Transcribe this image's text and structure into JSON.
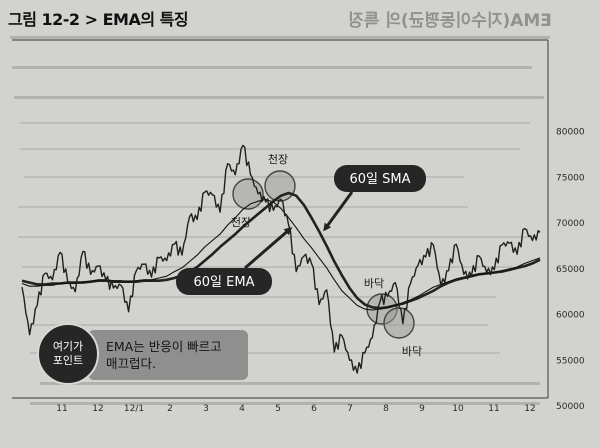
{
  "figure": {
    "title": "그림 12-2 > EMA의 특징",
    "bleed_heading": "EMA(지수이동평균)의 특징"
  },
  "callouts": {
    "sma": "60일 SMA",
    "ema": "60일 EMA"
  },
  "annotations": {
    "top_label": "천장",
    "bottom_label": "바닥"
  },
  "tip": {
    "badge_line1": "여기가",
    "badge_line2": "포인트",
    "text_line1": "EMA는 반응이 빠르고",
    "text_line2": "매끄럽다."
  },
  "chart_data": {
    "type": "line",
    "x_tick_labels": [
      "11",
      "12",
      "12/1",
      "2",
      "3",
      "4",
      "5",
      "6",
      "7",
      "8",
      "9",
      "10",
      "11",
      "12"
    ],
    "y_ticks": [
      50000,
      55000,
      60000,
      65000,
      70000,
      75000,
      80000
    ],
    "ylim": [
      50000,
      81500
    ],
    "grid": false,
    "series": [
      {
        "name": "",
        "style": "price",
        "values": [
          63000,
          57800,
          61000,
          64500,
          63800,
          66800,
          63600,
          62500,
          66900,
          64400,
          65300,
          63800,
          62900,
          63200,
          60300,
          64800,
          65500,
          64100,
          66200,
          65900,
          67700,
          66500,
          70700,
          70400,
          73400,
          73100,
          71200,
          76500,
          75300,
          78500,
          75300,
          73200,
          72300,
          71400,
          72600,
          69800,
          64700,
          66400,
          65600,
          61100,
          62700,
          55900,
          57700,
          55000,
          53600,
          55800,
          57500,
          61400,
          62000,
          63500,
          59000,
          63400,
          65400,
          66300,
          67600,
          63100,
          64800,
          67700,
          64400,
          64200,
          66400,
          64600,
          64900,
          67600,
          67800,
          66600,
          69400,
          68100,
          69000
        ]
      },
      {
        "name": "60일 EMA",
        "style": "thin",
        "values": [
          63400,
          63100,
          63100,
          63200,
          63200,
          63400,
          63400,
          63400,
          63600,
          63600,
          63800,
          63800,
          63700,
          63700,
          63600,
          63700,
          63800,
          63800,
          64000,
          64200,
          64700,
          65100,
          65800,
          66500,
          67400,
          68100,
          68800,
          69800,
          70600,
          71500,
          72100,
          72400,
          72600,
          72300,
          71600,
          70600,
          69500,
          68300,
          67300,
          66200,
          65100,
          63800,
          62600,
          61800,
          61000,
          60600,
          60500,
          60600,
          60800,
          61000,
          61300,
          61600,
          62000,
          62500,
          63000,
          63300,
          63600,
          63900,
          64100,
          64200,
          64400,
          64500,
          64600,
          64800,
          65000,
          65200,
          65600,
          65900,
          66200
        ]
      },
      {
        "name": "60일 SMA",
        "style": "thick",
        "values": [
          63700,
          63500,
          63300,
          63300,
          63400,
          63400,
          63500,
          63500,
          63500,
          63600,
          63700,
          63700,
          63600,
          63600,
          63600,
          63600,
          63700,
          63700,
          63700,
          63800,
          64000,
          64300,
          64700,
          65200,
          65900,
          66600,
          67400,
          68100,
          68800,
          69600,
          70300,
          71000,
          71700,
          72400,
          73000,
          73300,
          73000,
          72000,
          70600,
          69100,
          67500,
          65800,
          64300,
          62900,
          61800,
          61100,
          60800,
          60700,
          60800,
          61000,
          61200,
          61500,
          61800,
          62200,
          62600,
          63100,
          63500,
          63800,
          64000,
          64200,
          64400,
          64500,
          64600,
          64700,
          64900,
          65100,
          65300,
          65600,
          66000
        ]
      }
    ]
  }
}
